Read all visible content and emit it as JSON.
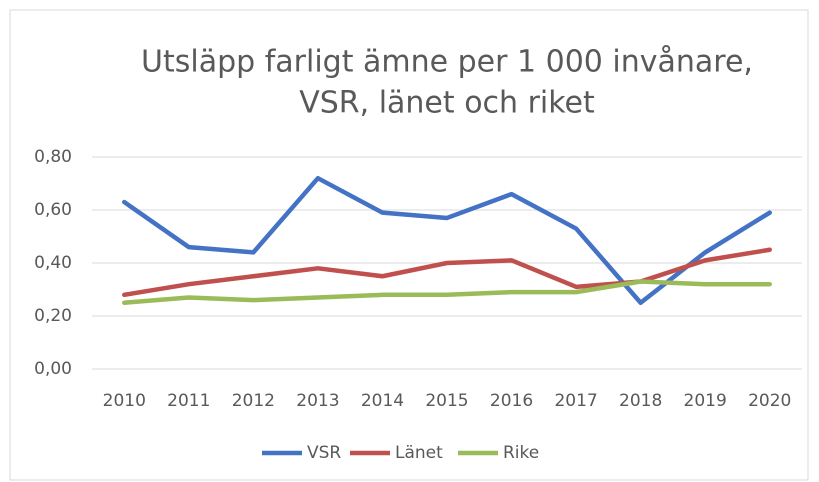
{
  "chart_data": {
    "type": "line",
    "title": [
      "Utsläpp farligt ämne per 1 000 invånare,",
      "VSR, länet och riket"
    ],
    "categories": [
      "2010",
      "2011",
      "2012",
      "2013",
      "2014",
      "2015",
      "2016",
      "2017",
      "2018",
      "2019",
      "2020"
    ],
    "series": [
      {
        "name": "VSR",
        "color": "#4472c4",
        "values": [
          0.63,
          0.46,
          0.44,
          0.72,
          0.59,
          0.57,
          0.66,
          0.53,
          0.25,
          0.44,
          0.59
        ]
      },
      {
        "name": "Länet",
        "color": "#c0504d",
        "values": [
          0.28,
          0.32,
          0.35,
          0.38,
          0.35,
          0.4,
          0.41,
          0.31,
          0.33,
          0.41,
          0.45
        ]
      },
      {
        "name": "Rike",
        "color": "#9bbb59",
        "values": [
          0.25,
          0.27,
          0.26,
          0.27,
          0.28,
          0.28,
          0.29,
          0.29,
          0.33,
          0.32,
          0.32
        ]
      }
    ],
    "ylim": [
      0,
      0.8
    ],
    "yticks": [
      {
        "value": 0,
        "label": "0,00"
      },
      {
        "value": 0.2,
        "label": "0,20"
      },
      {
        "value": 0.4,
        "label": "0,40"
      },
      {
        "value": 0.6,
        "label": "0,60"
      },
      {
        "value": 0.8,
        "label": "0,80"
      }
    ],
    "grid": true,
    "legend": "bottom"
  }
}
